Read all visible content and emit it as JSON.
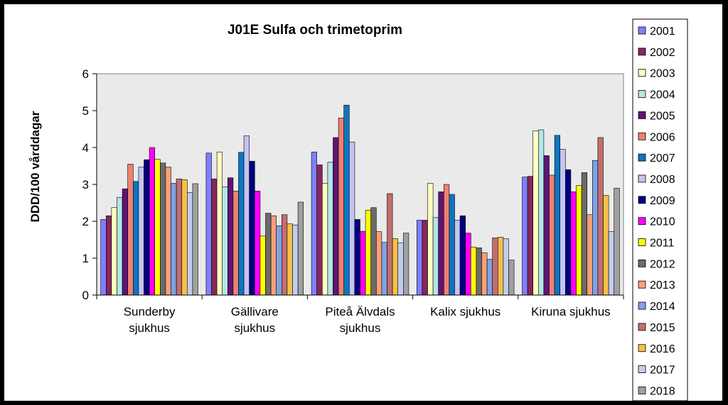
{
  "chart_data": {
    "type": "bar",
    "title": "J01E Sulfa och trimetoprim",
    "xlabel": "",
    "ylabel": "DDD/100 vårddagar",
    "ylim": [
      0,
      6
    ],
    "yticks": [
      "0",
      "1",
      "2",
      "3",
      "4",
      "5",
      "6"
    ],
    "grid": false,
    "legend_position": "right",
    "categories": [
      [
        "Sunderby",
        "sjukhus"
      ],
      [
        "Gällivare",
        "sjukhus"
      ],
      [
        "Piteå Älvdals",
        "sjukhus"
      ],
      [
        "Kalix sjukhus"
      ],
      [
        "Kiruna sjukhus"
      ]
    ],
    "series": [
      {
        "name": "2001",
        "color": "#7f7fff",
        "values": [
          2.05,
          3.85,
          3.88,
          2.03,
          3.2
        ]
      },
      {
        "name": "2002",
        "color": "#86265c",
        "values": [
          2.15,
          3.15,
          3.53,
          2.03,
          3.22
        ]
      },
      {
        "name": "2003",
        "color": "#ffffc0",
        "values": [
          2.37,
          3.88,
          3.03,
          3.03,
          4.45
        ]
      },
      {
        "name": "2004",
        "color": "#b3e6e6",
        "values": [
          2.65,
          2.93,
          3.6,
          2.1,
          4.48
        ]
      },
      {
        "name": "2005",
        "color": "#5e1475",
        "values": [
          2.88,
          3.18,
          4.27,
          2.8,
          3.78
        ]
      },
      {
        "name": "2006",
        "color": "#f08070",
        "values": [
          3.55,
          2.82,
          4.8,
          3.0,
          3.25
        ]
      },
      {
        "name": "2007",
        "color": "#0b76bf",
        "values": [
          3.08,
          3.87,
          5.15,
          2.73,
          4.33
        ]
      },
      {
        "name": "2008",
        "color": "#c4c4f4",
        "values": [
          3.47,
          4.32,
          4.15,
          2.03,
          3.95
        ]
      },
      {
        "name": "2009",
        "color": "#00007e",
        "values": [
          3.67,
          3.63,
          2.05,
          2.15,
          3.4
        ]
      },
      {
        "name": "2010",
        "color": "#ff00ff",
        "values": [
          4.0,
          2.82,
          1.73,
          1.68,
          2.8
        ]
      },
      {
        "name": "2011",
        "color": "#ffff00",
        "values": [
          3.68,
          1.6,
          2.3,
          1.3,
          2.97
        ]
      },
      {
        "name": "2012",
        "color": "#6b6b6b",
        "values": [
          3.58,
          2.22,
          2.37,
          1.28,
          3.32
        ]
      },
      {
        "name": "2013",
        "color": "#f7a07a",
        "values": [
          3.47,
          2.15,
          1.72,
          1.15,
          2.18
        ]
      },
      {
        "name": "2014",
        "color": "#7fa2e6",
        "values": [
          3.03,
          1.88,
          1.43,
          0.97,
          3.65
        ]
      },
      {
        "name": "2015",
        "color": "#c06f6f",
        "values": [
          3.15,
          2.18,
          2.75,
          1.55,
          4.27
        ]
      },
      {
        "name": "2016",
        "color": "#f7c04a",
        "values": [
          3.13,
          1.93,
          1.53,
          1.57,
          2.7
        ]
      },
      {
        "name": "2017",
        "color": "#c2cdee",
        "values": [
          2.78,
          1.9,
          1.42,
          1.53,
          1.72
        ]
      },
      {
        "name": "2018",
        "color": "#a0a0a0",
        "values": [
          3.02,
          2.52,
          1.68,
          0.95,
          2.9
        ]
      }
    ]
  }
}
